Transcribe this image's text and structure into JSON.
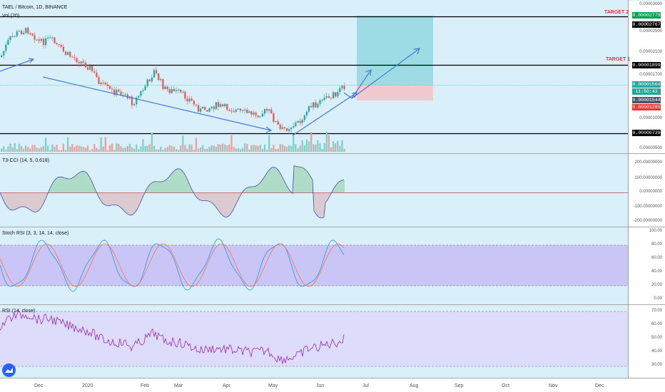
{
  "header": {
    "title": "TAEL / Bitcoin, 1D, BINANCE",
    "vol": "Vol (20)"
  },
  "targets": {
    "target2": "TARGET 2",
    "target1": "TARGET 1"
  },
  "price_badges": [
    {
      "label": "0.00002779",
      "bg": "#00a152",
      "fg": "#ffffff"
    },
    {
      "label": "0.00002767",
      "bg": "#000000",
      "fg": "#ffffff"
    },
    {
      "label": "0.00001899",
      "bg": "#000000",
      "fg": "#ffffff"
    },
    {
      "label": "0.00001564",
      "bg": "#26a69a",
      "fg": "#ffffff"
    },
    {
      "label": "11:50:43",
      "bg": "#26a69a",
      "fg": "#ffffff"
    },
    {
      "label": "0.00001544",
      "bg": "#4a5568",
      "fg": "#ffffff"
    },
    {
      "label": "0.00001285",
      "bg": "#e53935",
      "fg": "#ffffff"
    },
    {
      "label": "0.00000739",
      "bg": "#000000",
      "fg": "#ffffff"
    }
  ],
  "price_axis": [
    "0.00003000",
    "0.00002500",
    "0.00002100",
    "0.00001700",
    "0.00001000",
    "0.00000500"
  ],
  "indicators": {
    "cci": {
      "label": "T3-CCI (14, 5, 0.618)",
      "axis": [
        "200.00000000",
        "100.00000000",
        "0.00000000",
        "-100.00000000",
        "-200.00000000"
      ]
    },
    "stoch": {
      "label": "Stoch RSI (3, 3, 14, 14, close)",
      "axis": [
        "100.00",
        "80.00",
        "60.00",
        "40.00",
        "20.00",
        "0.00"
      ]
    },
    "rsi": {
      "label": "RSI (14, close)",
      "axis": [
        "70.00",
        "60.00",
        "50.00",
        "40.00",
        "30.00"
      ]
    }
  },
  "time_axis": [
    "Dec",
    "2020",
    "Feb",
    "Mar",
    "Apr",
    "May",
    "Jun",
    "Jul",
    "Aug",
    "Sep",
    "Oct",
    "Nov",
    "Dec"
  ],
  "colors": {
    "up": "#26a69a",
    "down": "#ef5350",
    "panel_bg": "#d6eef8",
    "stoch_band": "#c7bdf7",
    "rsi_band": "#ddd9fb",
    "target_box": "#8fd6e0",
    "stop_box": "#f3c5cb"
  }
}
